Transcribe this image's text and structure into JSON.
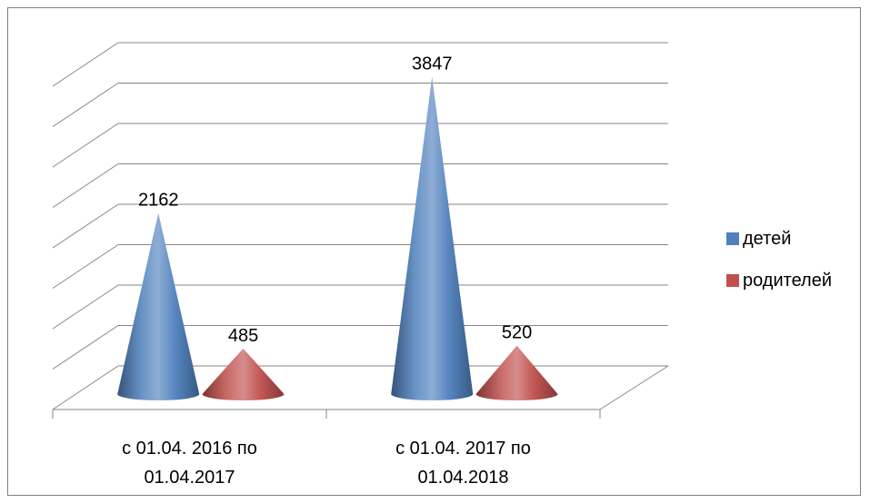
{
  "chart_data": {
    "type": "bar",
    "style": "3d-cone",
    "categories": [
      [
        "с 01.04. 2016 по",
        "01.04.2017"
      ],
      [
        "с 01.04. 2017 по",
        "01.04.2018"
      ]
    ],
    "series": [
      {
        "name": "детей",
        "values": [
          2162,
          3847
        ],
        "color": "#4f81bd"
      },
      {
        "name": "родителей",
        "values": [
          485,
          520
        ],
        "color": "#c0504d"
      }
    ],
    "ylim": [
      0,
      4000
    ],
    "grid": true,
    "legend_position": "right"
  }
}
